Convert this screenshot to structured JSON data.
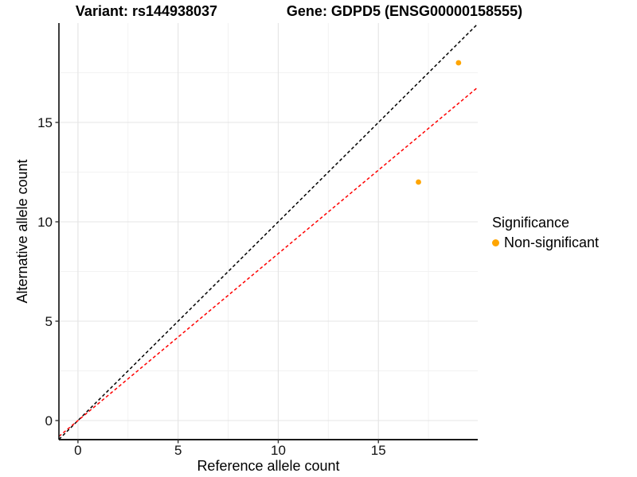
{
  "titles": {
    "variant": "Variant: rs144938037",
    "gene": "Gene: GDPD5 (ENSG00000158555)"
  },
  "axes": {
    "x": {
      "label": "Reference allele count",
      "ticks": [
        0,
        5,
        10,
        15
      ],
      "minor_ticks": [
        2.5,
        7.5,
        12.5,
        17.5
      ]
    },
    "y": {
      "label": "Alternative allele count",
      "ticks": [
        0,
        5,
        10,
        15
      ],
      "minor_ticks": [
        2.5,
        7.5,
        12.5,
        17.5
      ]
    }
  },
  "legend": {
    "title": "Significance",
    "items": [
      {
        "label": "Non-significant",
        "color": "#FFA500"
      }
    ]
  },
  "chart_data": {
    "type": "scatter",
    "title": "Variant: rs144938037 | Gene: GDPD5 (ENSG00000158555)",
    "xlabel": "Reference allele count",
    "ylabel": "Alternative allele count",
    "xlim": [
      -0.95,
      19.96
    ],
    "ylim": [
      -0.96,
      20.0
    ],
    "grid": true,
    "legend_position": "right",
    "series": [
      {
        "name": "Non-significant",
        "color": "#FFA500",
        "points": [
          {
            "x": 17,
            "y": 12
          },
          {
            "x": 19,
            "y": 18
          }
        ]
      }
    ],
    "lines": [
      {
        "name": "identity-line",
        "slope": 1.0,
        "intercept": 0,
        "color": "#000000",
        "style": "dashed"
      },
      {
        "name": "ratio-line",
        "slope": 0.84,
        "intercept": 0,
        "color": "#FF0000",
        "style": "dashed"
      }
    ]
  },
  "colors": {
    "point": "#FFA500",
    "grid_major": "#E4E4E4",
    "grid_minor": "#F2F2F2",
    "axis_line": "#1A1A1A",
    "tick": "#333333"
  }
}
